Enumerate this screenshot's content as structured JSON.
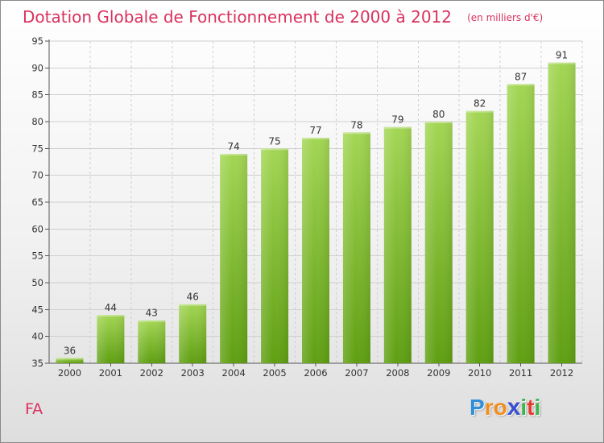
{
  "header": {
    "title": "Dotation Globale de Fonctionnement de 2000 à 2012",
    "subtitle": "(en milliers d'€)"
  },
  "footer": {
    "commune": "FA",
    "brand_letters": [
      "P",
      "r",
      "o",
      "x",
      "i",
      "t",
      "i"
    ],
    "brand_colors": [
      "#2f8fd8",
      "#f28c1e",
      "#f28c1e",
      "#3a4fd0",
      "#3bb34a",
      "#e23c2e",
      "#3bb34a"
    ]
  },
  "colors": {
    "title": "#d9315e",
    "bar_top": "#a3d654",
    "bar_bottom": "#5f9f12",
    "grid": "#cfcfcf"
  },
  "chart_data": {
    "type": "bar",
    "categories": [
      "2000",
      "2001",
      "2002",
      "2003",
      "2004",
      "2005",
      "2006",
      "2007",
      "2008",
      "2009",
      "2010",
      "2011",
      "2012"
    ],
    "values": [
      36,
      44,
      43,
      46,
      74,
      75,
      77,
      78,
      79,
      80,
      82,
      87,
      91
    ],
    "ylim": [
      35,
      95
    ],
    "yticks": [
      35,
      40,
      45,
      50,
      55,
      60,
      65,
      70,
      75,
      80,
      85,
      90,
      95
    ],
    "grid": true,
    "data_labels": true
  }
}
